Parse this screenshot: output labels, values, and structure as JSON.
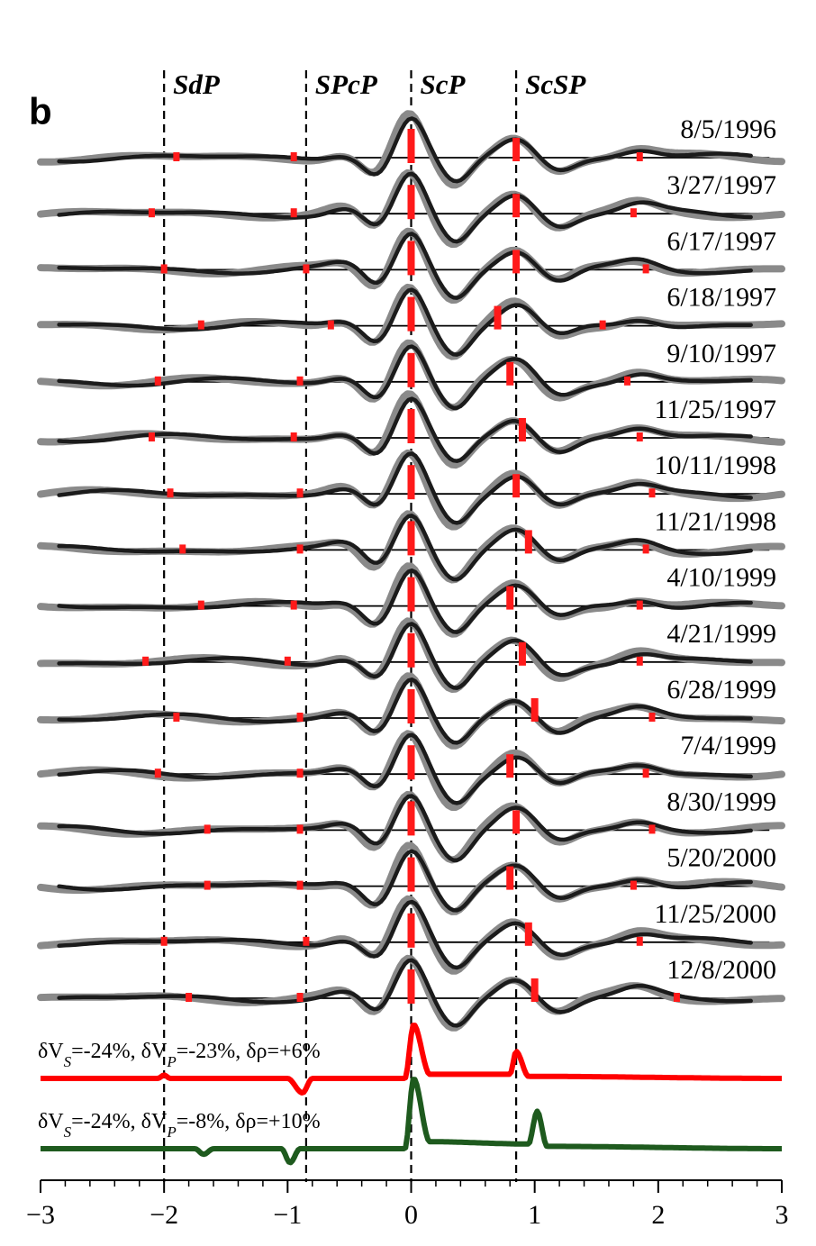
{
  "panel_label": "b",
  "chart_data": {
    "type": "line",
    "title": "",
    "xlabel": "",
    "ylabel": "",
    "xlim": [
      -3,
      3
    ],
    "xticks": [
      -3,
      -2,
      -1,
      0,
      1,
      2,
      3
    ],
    "xtick_labels": [
      "−3",
      "−2",
      "−1",
      "0",
      "1",
      "2",
      "3"
    ],
    "phases": [
      {
        "label": "SdP",
        "x": -2.0
      },
      {
        "label": "SPcP",
        "x": -0.85
      },
      {
        "label": "ScP",
        "x": 0.0
      },
      {
        "label": "ScSP",
        "x": 0.85
      }
    ],
    "traces": [
      {
        "date": "8/5/1996",
        "markers": [
          -1.9,
          -0.95,
          0.0,
          0.85,
          1.85
        ]
      },
      {
        "date": "3/27/1997",
        "markers": [
          -2.1,
          -0.95,
          0.0,
          0.85,
          1.8
        ]
      },
      {
        "date": "6/17/1997",
        "markers": [
          -2.0,
          -0.85,
          0.0,
          0.85,
          1.9
        ]
      },
      {
        "date": "6/18/1997",
        "markers": [
          -1.7,
          -0.65,
          0.0,
          0.7,
          1.55
        ]
      },
      {
        "date": "9/10/1997",
        "markers": [
          -2.05,
          -0.9,
          0.0,
          0.8,
          1.75
        ]
      },
      {
        "date": "11/25/1997",
        "markers": [
          -2.1,
          -0.95,
          0.0,
          0.9,
          1.85
        ]
      },
      {
        "date": "10/11/1998",
        "markers": [
          -1.95,
          -0.9,
          0.0,
          0.85,
          1.95
        ]
      },
      {
        "date": "11/21/1998",
        "markers": [
          -1.85,
          -0.9,
          0.0,
          0.95,
          1.9
        ]
      },
      {
        "date": "4/10/1999",
        "markers": [
          -1.7,
          -0.95,
          0.0,
          0.8,
          1.85
        ]
      },
      {
        "date": "4/21/1999",
        "markers": [
          -2.15,
          -1.0,
          0.0,
          0.9,
          1.85
        ]
      },
      {
        "date": "6/28/1999",
        "markers": [
          -1.9,
          -0.9,
          0.0,
          1.0,
          1.95
        ]
      },
      {
        "date": "7/4/1999",
        "markers": [
          -2.05,
          -0.9,
          0.0,
          0.8,
          1.9
        ]
      },
      {
        "date": "8/30/1999",
        "markers": [
          -1.65,
          -0.9,
          0.0,
          0.85,
          1.95
        ]
      },
      {
        "date": "5/20/2000",
        "markers": [
          -1.65,
          -0.9,
          0.0,
          0.8,
          1.8
        ]
      },
      {
        "date": "11/25/2000",
        "markers": [
          -2.0,
          -0.85,
          0.0,
          0.95,
          1.85
        ]
      },
      {
        "date": "12/8/2000",
        "markers": [
          -1.8,
          -0.9,
          0.0,
          1.0,
          2.15
        ]
      }
    ],
    "synthetics": [
      {
        "label": "δV_S=-24%, δV_P=-23%, δρ=+6%",
        "color": "#ff0000",
        "x": [
          -3.0,
          -2.05,
          -2.0,
          -1.95,
          -1.0,
          -0.88,
          -0.8,
          -0.05,
          0.02,
          0.15,
          0.8,
          0.85,
          0.95,
          3.0
        ],
        "y": [
          0,
          0,
          0.08,
          0,
          0,
          -0.35,
          0,
          0,
          1.3,
          0.1,
          0.1,
          0.65,
          0.05,
          0
        ]
      },
      {
        "label": "δV_S=-24%, δV_P=-8%, δρ=+10%",
        "color": "#1e5a1e",
        "x": [
          -3.0,
          -1.75,
          -1.68,
          -1.6,
          -1.05,
          -0.98,
          -0.9,
          -0.05,
          0.02,
          0.15,
          0.95,
          1.02,
          1.1,
          3.0
        ],
        "y": [
          0,
          0,
          -0.12,
          0,
          0,
          -0.3,
          0,
          0,
          1.5,
          0.15,
          0.1,
          0.8,
          0.05,
          0
        ]
      }
    ],
    "legend_placement": "none",
    "grid": false
  }
}
